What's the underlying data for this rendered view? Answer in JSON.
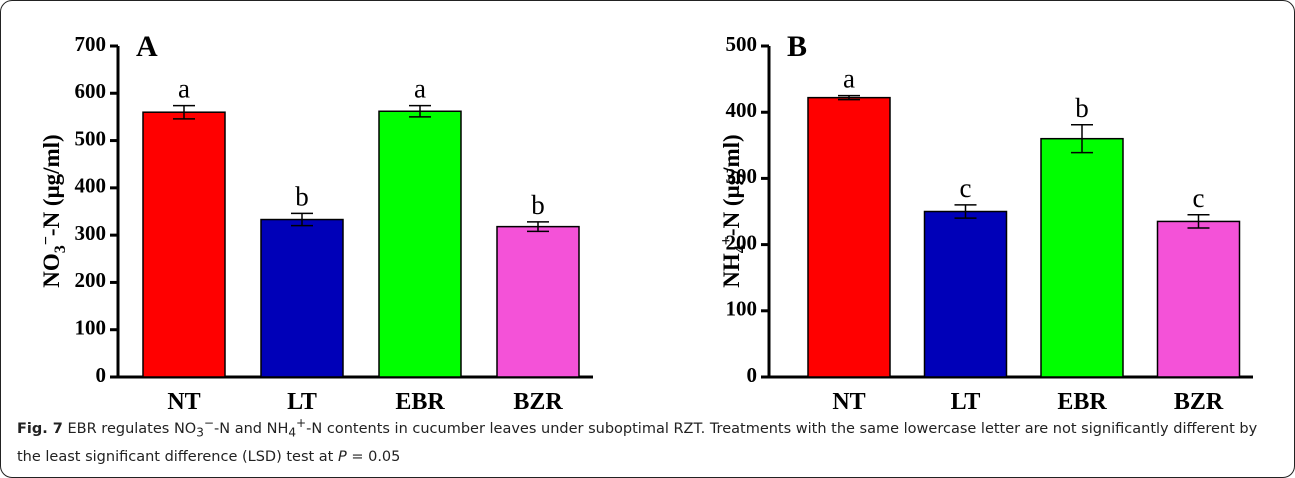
{
  "chart_data": [
    {
      "type": "bar",
      "panel": "A",
      "y_label": [
        "NO",
        "3",
        "−",
        "-N (μg/ml)"
      ],
      "categories": [
        "NT",
        "LT",
        "EBR",
        "BZR"
      ],
      "values": [
        560,
        333,
        562,
        318
      ],
      "errors": [
        14,
        13,
        12,
        10
      ],
      "letters": [
        "a",
        "b",
        "a",
        "b"
      ],
      "colors": [
        "#ff0000",
        "#0000b8",
        "#00ff00",
        "#f452d8"
      ],
      "ylim": [
        0,
        700
      ],
      "yticks": [
        0,
        100,
        200,
        300,
        400,
        500,
        600,
        700
      ]
    },
    {
      "type": "bar",
      "panel": "B",
      "y_label": [
        "NH",
        "4",
        "+",
        "-N (μg/ml)"
      ],
      "categories": [
        "NT",
        "LT",
        "EBR",
        "BZR"
      ],
      "values": [
        422,
        250,
        360,
        235
      ],
      "errors": [
        3,
        10,
        21,
        10
      ],
      "letters": [
        "a",
        "c",
        "b",
        "c"
      ],
      "colors": [
        "#ff0000",
        "#0000b8",
        "#00ff00",
        "#f452d8"
      ],
      "ylim": [
        0,
        500
      ],
      "yticks": [
        0,
        100,
        200,
        300,
        400,
        500
      ]
    }
  ],
  "caption": {
    "label": "Fig. 7",
    "parts": [
      "EBR regulates NO",
      "3",
      "−",
      "-N and NH",
      "4",
      "+",
      "-N contents in cucumber leaves under suboptimal RZT. Treatments with the same lowercase letter are not significantly different by the least significant difference (LSD) test at ",
      "P",
      " = 0.05"
    ]
  }
}
